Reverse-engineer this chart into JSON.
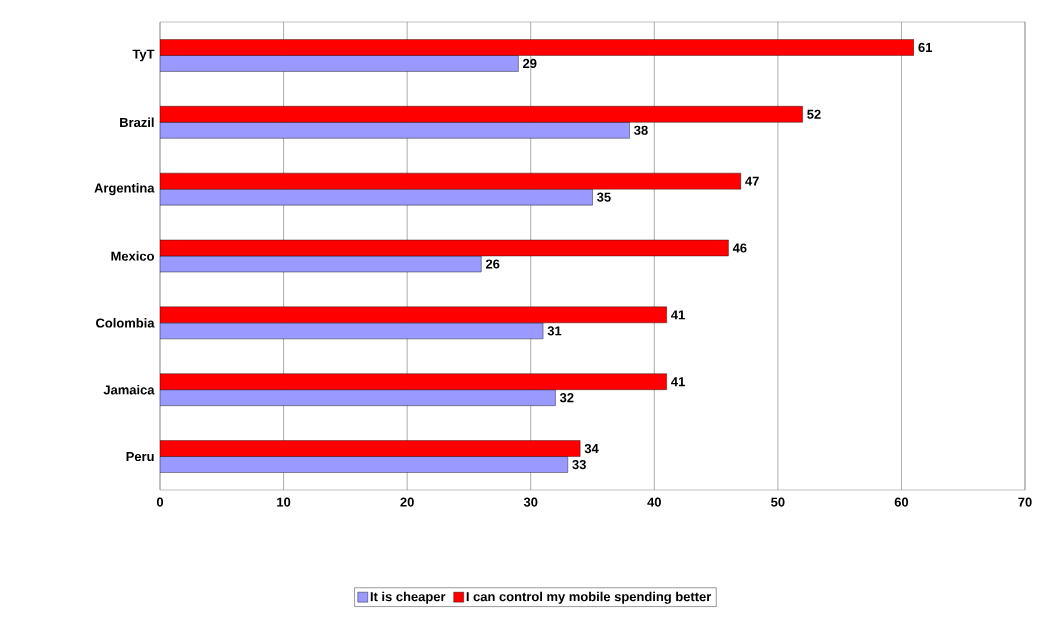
{
  "chart_data": {
    "type": "bar",
    "orientation": "horizontal",
    "categories": [
      "TyT",
      "Brazil",
      "Argentina",
      "Mexico",
      "Colombia",
      "Jamaica",
      "Peru"
    ],
    "series": [
      {
        "name": "It is cheaper",
        "color": "#9999ff",
        "values": [
          29,
          38,
          35,
          26,
          31,
          32,
          33
        ]
      },
      {
        "name": "I can control my mobile spending better",
        "color": "#ff0000",
        "values": [
          61,
          52,
          47,
          46,
          41,
          41,
          34
        ]
      }
    ],
    "xlim": [
      0,
      70
    ],
    "xticks": [
      0,
      10,
      20,
      30,
      40,
      50,
      60,
      70
    ],
    "grid": "x",
    "legend": "bottom",
    "data_labels": true
  }
}
